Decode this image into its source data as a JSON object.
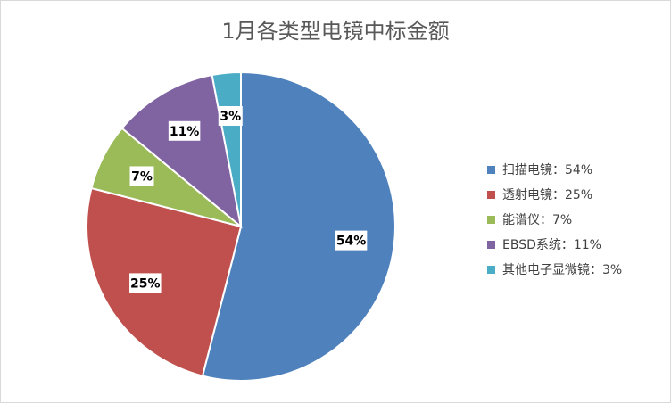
{
  "chart_data": {
    "type": "pie",
    "title": "1月各类型电镜中标金额",
    "categories": [
      "扫描电镜",
      "透射电镜",
      "能谱仪",
      "EBSD系统",
      "其他电子显微镜"
    ],
    "values": [
      54,
      25,
      7,
      11,
      3
    ],
    "data_labels": [
      "54%",
      "25%",
      "7%",
      "11%",
      "3%"
    ],
    "legend_labels": [
      "扫描电镜：54%",
      "透射电镜：25%",
      "能谱仪：7%",
      "EBSD系统：11%",
      "其他电子显微镜：3%"
    ],
    "colors": [
      "#4f81bd",
      "#c0504d",
      "#9bbb59",
      "#8064a2",
      "#4bacc6"
    ],
    "legend_position": "right",
    "start_angle_deg": 0,
    "direction": "clockwise"
  }
}
